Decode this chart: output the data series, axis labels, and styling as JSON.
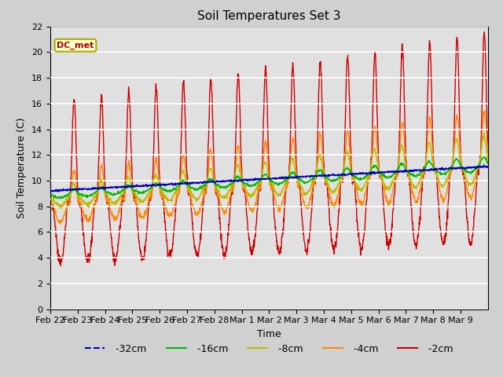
{
  "title": "Soil Temperatures Set 3",
  "xlabel": "Time",
  "ylabel": "Soil Temperature (C)",
  "ylim": [
    0,
    22
  ],
  "yticks": [
    0,
    2,
    4,
    6,
    8,
    10,
    12,
    14,
    16,
    18,
    20,
    22
  ],
  "fig_bg_color": "#d0d0d0",
  "plot_bg_color": "#e0e0e0",
  "series_colors": {
    "-32cm": "#0000bb",
    "-16cm": "#00bb00",
    "-8cm": "#bbbb00",
    "-4cm": "#ff8800",
    "-2cm": "#cc0000"
  },
  "x_tick_labels": [
    "Feb 22",
    "Feb 23",
    "Feb 24",
    "Feb 25",
    "Feb 26",
    "Feb 27",
    "Feb 28",
    "Mar 1",
    "Mar 2",
    "Mar 3",
    "Mar 4",
    "Mar 5",
    "Mar 6",
    "Mar 7",
    "Mar 8",
    "Mar 9"
  ],
  "n_days": 16,
  "n_pts": 1600
}
